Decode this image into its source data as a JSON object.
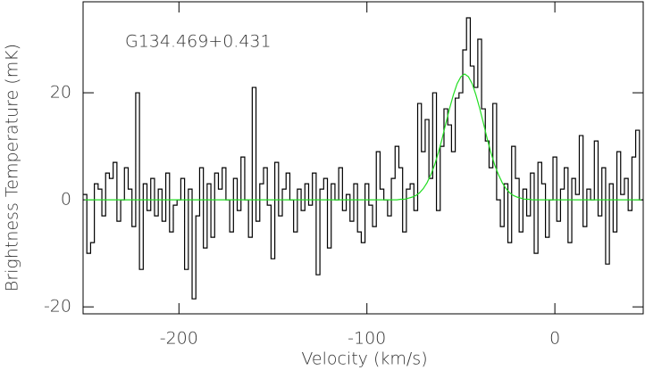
{
  "chart_data": {
    "type": "line",
    "annotation": "G134.469+0.431",
    "xlabel": "Velocity (km/s)",
    "ylabel": "Brightness Temperature (mK)",
    "xlim": [
      -251,
      47
    ],
    "ylim": [
      -21.3,
      37
    ],
    "xticks": [
      -200,
      -100,
      0
    ],
    "yticks": [
      -20,
      0,
      20
    ],
    "x": [
      -250,
      -248,
      -246,
      -244,
      -242,
      -240,
      -238,
      -236,
      -234,
      -232,
      -230,
      -228,
      -226,
      -224,
      -222,
      -220,
      -218,
      -216,
      -214,
      -212,
      -210,
      -208,
      -206,
      -204,
      -202,
      -200,
      -198,
      -196,
      -194,
      -192,
      -190,
      -188,
      -186,
      -184,
      -182,
      -180,
      -178,
      -176,
      -174,
      -172,
      -170,
      -168,
      -166,
      -164,
      -162,
      -160,
      -158,
      -156,
      -154,
      -152,
      -150,
      -148,
      -146,
      -144,
      -142,
      -140,
      -138,
      -136,
      -134,
      -132,
      -130,
      -128,
      -126,
      -124,
      -122,
      -120,
      -118,
      -116,
      -114,
      -112,
      -110,
      -108,
      -106,
      -104,
      -102,
      -100,
      -98,
      -96,
      -94,
      -92,
      -90,
      -88,
      -86,
      -84,
      -82,
      -80,
      -78,
      -76,
      -74,
      -72,
      -70,
      -68,
      -66,
      -64,
      -62,
      -60,
      -58,
      -56,
      -54,
      -52,
      -50,
      -48,
      -46,
      -44,
      -42,
      -40,
      -38,
      -36,
      -34,
      -32,
      -30,
      -28,
      -26,
      -24,
      -22,
      -20,
      -18,
      -16,
      -14,
      -12,
      -10,
      -8,
      -6,
      -4,
      -2,
      0,
      2,
      4,
      6,
      8,
      10,
      12,
      14,
      16,
      18,
      20,
      22,
      24,
      26,
      28,
      30,
      32,
      34,
      36,
      38,
      40,
      42,
      44,
      46
    ],
    "series": [
      {
        "color": "#000000",
        "drawstyle": "steps-mid",
        "values": [
          1,
          -10,
          -8,
          3,
          2,
          -3,
          5,
          4,
          7,
          -4,
          0,
          6,
          2,
          -5,
          20,
          -13,
          3,
          -2,
          4,
          -3,
          2,
          -4,
          5,
          -6,
          -1,
          0,
          4,
          -13,
          2,
          -18.5,
          -3,
          6,
          -9,
          3,
          -7,
          5,
          2,
          6,
          0,
          -6,
          4,
          -2,
          8,
          0,
          -7,
          21,
          -4,
          3,
          6,
          -1,
          -11,
          7,
          -3,
          2,
          5,
          0,
          -6,
          2,
          -2,
          3,
          -1,
          5,
          -14,
          2,
          4,
          -9,
          3,
          0,
          6,
          -2,
          1,
          -4,
          3,
          -6,
          -8,
          3,
          -1,
          -5,
          9,
          2,
          0,
          -3,
          4,
          10,
          6,
          -6,
          2,
          3,
          -2,
          18,
          9,
          15,
          4,
          20,
          -2,
          10,
          17,
          14,
          9,
          19,
          20,
          28,
          34,
          25,
          21,
          30,
          17,
          11,
          6,
          18,
          0,
          -5,
          3,
          -8,
          10,
          4,
          -6,
          2,
          -3,
          5,
          -10,
          7,
          3,
          -7,
          0,
          8,
          -4,
          2,
          6,
          -8,
          4,
          1,
          12,
          -5,
          2,
          0,
          11,
          -3,
          6,
          -12,
          3,
          -6,
          9,
          1,
          4,
          -2,
          8,
          13,
          0
        ]
      },
      {
        "color": "#22dd22",
        "drawstyle": "default",
        "values": [
          0,
          0,
          0,
          0,
          0,
          0,
          0,
          0,
          0,
          0,
          0,
          0,
          0,
          0,
          0,
          0,
          0,
          0,
          0,
          0,
          0,
          0,
          0,
          0,
          0,
          0,
          0,
          0,
          0,
          0,
          0,
          0,
          0,
          0,
          0,
          0,
          0,
          0,
          0,
          0,
          0,
          0,
          0,
          0,
          0,
          0,
          0,
          0,
          0,
          0,
          0,
          0,
          0,
          0,
          0,
          0,
          0,
          0,
          0,
          0,
          0,
          0,
          0,
          0,
          0,
          0,
          0,
          0,
          0,
          0,
          0,
          0,
          0,
          0,
          0,
          0,
          0,
          0,
          0,
          0,
          0,
          0,
          0,
          0,
          0.1,
          0.1,
          0.3,
          0.5,
          0.8,
          1.3,
          2.1,
          3.2,
          4.7,
          6.5,
          8.8,
          11.4,
          14.3,
          17.1,
          19.6,
          21.7,
          23.0,
          23.5,
          23.0,
          21.7,
          19.6,
          17.1,
          14.3,
          11.4,
          8.8,
          6.5,
          4.7,
          3.2,
          2.1,
          1.3,
          0.8,
          0.5,
          0.3,
          0.1,
          0.1,
          0,
          0,
          0,
          0,
          0,
          0,
          0,
          0,
          0,
          0,
          0,
          0,
          0,
          0,
          0,
          0,
          0,
          0,
          0,
          0,
          0,
          0,
          0,
          0,
          0,
          0,
          0,
          0,
          0,
          0
        ]
      }
    ]
  }
}
